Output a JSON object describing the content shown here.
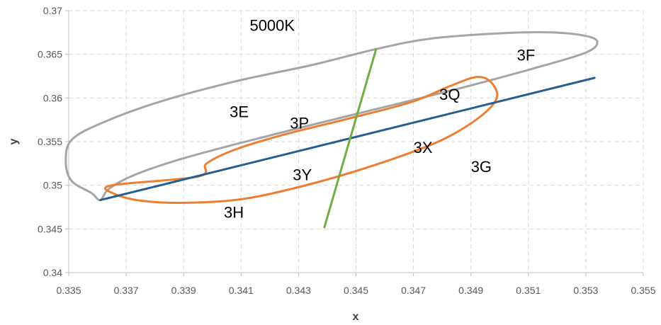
{
  "chart_data": {
    "type": "scatter",
    "title": "",
    "xlabel": "x",
    "ylabel": "y",
    "xlim": [
      0.335,
      0.355
    ],
    "ylim": [
      0.34,
      0.37
    ],
    "x_ticks": [
      "0.335",
      "0.337",
      "0.339",
      "0.341",
      "0.343",
      "0.345",
      "0.347",
      "0.349",
      "0.351",
      "0.353",
      "0.355"
    ],
    "y_ticks": [
      "0.34",
      "0.345",
      "0.35",
      "0.355",
      "0.36",
      "0.365",
      "0.37"
    ],
    "grid": true,
    "legend": "none",
    "colors": {
      "outer_ellipse": "#A5A5A5",
      "inner_ellipse": "#ED7D31",
      "major_axis": "#255E91",
      "minor_axis": "#70AD47",
      "grid": "#D9D9D9",
      "axis": "#BFBFBF"
    },
    "series": [
      {
        "kind": "ellipse",
        "points": [
          [
            0.3361,
            0.3483
          ],
          [
            0.3364,
            0.3496
          ],
          [
            0.3373,
            0.3512
          ],
          [
            0.3388,
            0.3529
          ],
          [
            0.3408,
            0.3547
          ],
          [
            0.3432,
            0.3567
          ],
          [
            0.3458,
            0.3588
          ],
          [
            0.3486,
            0.3611
          ],
          [
            0.3512,
            0.3634
          ],
          [
            0.353,
            0.3652
          ],
          [
            0.3534,
            0.3664
          ],
          [
            0.353,
            0.3671
          ],
          [
            0.3518,
            0.3675
          ],
          [
            0.35,
            0.3674
          ],
          [
            0.3476,
            0.3668
          ],
          [
            0.3457,
            0.3656
          ],
          [
            0.3435,
            0.3638
          ],
          [
            0.3408,
            0.3619
          ],
          [
            0.3382,
            0.3596
          ],
          [
            0.3362,
            0.3572
          ],
          [
            0.3351,
            0.3552
          ],
          [
            0.3349,
            0.3527
          ],
          [
            0.3351,
            0.3505
          ],
          [
            0.3358,
            0.3491
          ],
          [
            0.3361,
            0.3483
          ]
        ]
      },
      {
        "kind": "ellipse",
        "points": [
          [
            0.3395,
            0.351
          ],
          [
            0.3398,
            0.3525
          ],
          [
            0.3408,
            0.3541
          ],
          [
            0.3425,
            0.3558
          ],
          [
            0.3447,
            0.3576
          ],
          [
            0.3469,
            0.3595
          ],
          [
            0.3483,
            0.3614
          ],
          [
            0.3492,
            0.3624
          ],
          [
            0.3497,
            0.3618
          ],
          [
            0.3499,
            0.36
          ],
          [
            0.3493,
            0.3578
          ],
          [
            0.348,
            0.3552
          ],
          [
            0.346,
            0.3527
          ],
          [
            0.3436,
            0.3503
          ],
          [
            0.3412,
            0.3485
          ],
          [
            0.3392,
            0.348
          ],
          [
            0.3376,
            0.3482
          ],
          [
            0.3366,
            0.349
          ],
          [
            0.3365,
            0.35
          ],
          [
            0.3395,
            0.351
          ]
        ]
      },
      {
        "kind": "segment",
        "points": [
          [
            0.3361,
            0.3483
          ],
          [
            0.3533,
            0.3623
          ]
        ]
      },
      {
        "kind": "segment",
        "points": [
          [
            0.3439,
            0.3452
          ],
          [
            0.3457,
            0.3656
          ]
        ]
      }
    ],
    "annotations": [
      {
        "text": "5000K",
        "x": 0.3413,
        "y": 0.3677
      },
      {
        "text": "3E",
        "x": 0.3406,
        "y": 0.3578
      },
      {
        "text": "3P",
        "x": 0.3427,
        "y": 0.3565
      },
      {
        "text": "3Q",
        "x": 0.3479,
        "y": 0.3598
      },
      {
        "text": "3F",
        "x": 0.3506,
        "y": 0.3643
      },
      {
        "text": "3X",
        "x": 0.347,
        "y": 0.3537
      },
      {
        "text": "3G",
        "x": 0.349,
        "y": 0.3515
      },
      {
        "text": "3Y",
        "x": 0.3428,
        "y": 0.3506
      },
      {
        "text": "3H",
        "x": 0.3404,
        "y": 0.3463
      }
    ]
  }
}
